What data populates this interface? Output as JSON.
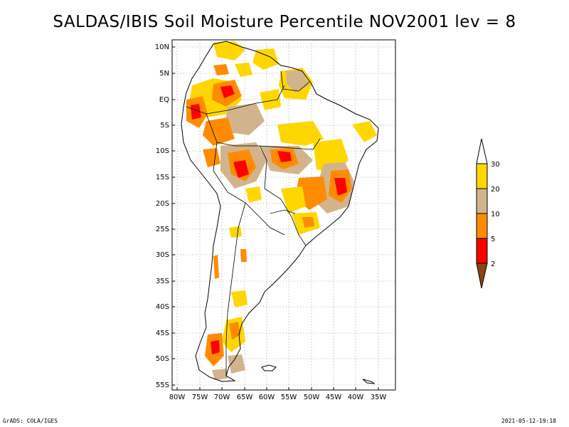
{
  "title": "SALDAS/IBIS Soil Moisture Percentile NOV2001 lev = 8",
  "footer": {
    "left": "GrADS: COLA/IGES",
    "right": "2021-05-12-19:18"
  },
  "axes": {
    "lon_ticks": [
      "80W",
      "75W",
      "70W",
      "65W",
      "60W",
      "55W",
      "50W",
      "45W",
      "40W",
      "35W"
    ],
    "lat_ticks": [
      "10N",
      "5N",
      "EQ",
      "5S",
      "10S",
      "15S",
      "20S",
      "25S",
      "30S",
      "35S",
      "40S",
      "45S",
      "50S",
      "55S"
    ]
  },
  "legend": {
    "labels": [
      "2",
      "5",
      "10",
      "20",
      "30"
    ],
    "colors": [
      "#8b4513",
      "#ff0000",
      "#ff8c00",
      "#d2b48c",
      "#ffd700"
    ],
    "top_arrow_color": "#ffffff"
  },
  "map": {
    "lon_range": [
      -81,
      -32
    ],
    "lat_range": [
      -56,
      12
    ],
    "grid": "dotted",
    "coastline_color": "#000000"
  }
}
